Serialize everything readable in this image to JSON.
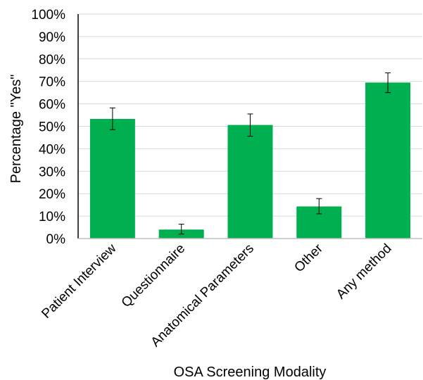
{
  "chart_data": {
    "type": "bar",
    "categories": [
      "Patient Interview",
      "Questionnaire",
      "Anatomical Parameters",
      "Other",
      "Any method"
    ],
    "values": [
      53.3,
      4.0,
      50.6,
      14.3,
      69.5
    ],
    "error_bars": [
      {
        "low": 48.5,
        "high": 58.2
      },
      {
        "low": 2.0,
        "high": 6.4
      },
      {
        "low": 45.6,
        "high": 55.5
      },
      {
        "low": 11.0,
        "high": 17.8
      },
      {
        "low": 65.0,
        "high": 73.8
      }
    ],
    "xlabel": "OSA Screening Modality",
    "ylabel": "Percentage \"Yes\"",
    "ylim": [
      0,
      100
    ],
    "yticks": [
      "0%",
      "10%",
      "20%",
      "30%",
      "40%",
      "50%",
      "60%",
      "70%",
      "80%",
      "90%",
      "100%"
    ],
    "bar_color": "#00b050",
    "grid": true,
    "legend": "none"
  }
}
